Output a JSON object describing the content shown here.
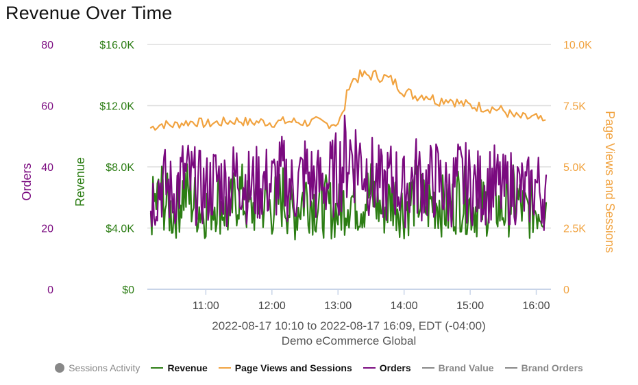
{
  "title": "Revenue Over Time",
  "colors": {
    "orders": "#7a0a7f",
    "revenue": "#2c7d14",
    "sessions": "#f1a340",
    "gray": "#888888",
    "grid": "#dddddd"
  },
  "caption": {
    "line1": "2022-08-17 10:10 to 2022-08-17 16:09, EDT (-04:00)",
    "line2": "Demo eCommerce Global"
  },
  "legend": [
    {
      "label": "Sessions Activity",
      "marker": "dot",
      "color": "#888888",
      "active": false
    },
    {
      "label": "Revenue",
      "marker": "line",
      "color": "#2c7d14",
      "active": true
    },
    {
      "label": "Page Views and Sessions",
      "marker": "line",
      "color": "#f1a340",
      "active": true
    },
    {
      "label": "Orders",
      "marker": "line",
      "color": "#7a0a7f",
      "active": true
    },
    {
      "label": "Brand Value",
      "marker": "line",
      "color": "#888888",
      "active": false
    },
    {
      "label": "Brand Orders",
      "marker": "line",
      "color": "#888888",
      "active": false
    }
  ],
  "chart_data": {
    "type": "line",
    "title": "Revenue Over Time",
    "x_range": [
      "2022-08-17 10:10",
      "2022-08-17 16:09"
    ],
    "x_ticks": [
      "11:00",
      "12:00",
      "13:00",
      "14:00",
      "15:00",
      "16:00"
    ],
    "grid": true,
    "legend_position": "bottom",
    "axes": {
      "orders": {
        "label": "Orders",
        "side": "left-outer",
        "ylim": [
          0,
          80
        ],
        "ticks": [
          "0",
          "20",
          "40",
          "60",
          "80"
        ]
      },
      "revenue": {
        "label": "Revenue",
        "side": "left-inner",
        "ylim": [
          0,
          16000
        ],
        "ticks": [
          "$0",
          "$4.0K",
          "$8.0K",
          "$12.0K",
          "$16.0K"
        ]
      },
      "sessions": {
        "label": "Page Views and Sessions",
        "side": "right",
        "ylim": [
          0,
          10000
        ],
        "ticks": [
          "0",
          "2.5K",
          "5.0K",
          "7.5K",
          "10.0K"
        ]
      }
    },
    "series": [
      {
        "name": "Page Views and Sessions",
        "axis": "sessions",
        "x": [
          "10:10",
          "10:20",
          "10:30",
          "10:40",
          "10:50",
          "11:00",
          "11:10",
          "11:20",
          "11:30",
          "11:40",
          "11:50",
          "12:00",
          "12:10",
          "12:20",
          "12:30",
          "12:40",
          "12:50",
          "13:00",
          "13:05",
          "13:10",
          "13:15",
          "13:20",
          "13:30",
          "13:40",
          "13:50",
          "14:00",
          "14:10",
          "14:20",
          "14:30",
          "14:40",
          "14:50",
          "15:00",
          "15:10",
          "15:20",
          "15:30",
          "15:40",
          "15:50",
          "16:00",
          "16:09"
        ],
        "values": [
          6600,
          6750,
          6700,
          6800,
          6850,
          6750,
          6800,
          6850,
          6900,
          6800,
          6850,
          6800,
          6850,
          6850,
          6800,
          6850,
          6750,
          6800,
          7200,
          8400,
          8600,
          8700,
          8750,
          8700,
          8500,
          8100,
          7900,
          7950,
          7700,
          7800,
          7600,
          7500,
          7450,
          7400,
          7300,
          7050,
          7000,
          7000,
          6750
        ]
      },
      {
        "name": "Revenue",
        "axis": "revenue",
        "x": [
          "10:10",
          "10:20",
          "10:30",
          "10:40",
          "10:50",
          "11:00",
          "11:10",
          "11:20",
          "11:30",
          "11:40",
          "11:50",
          "12:00",
          "12:10",
          "12:20",
          "12:30",
          "12:40",
          "12:50",
          "13:00",
          "13:10",
          "13:20",
          "13:30",
          "13:40",
          "13:50",
          "14:00",
          "14:10",
          "14:20",
          "14:30",
          "14:40",
          "14:50",
          "15:00",
          "15:10",
          "15:20",
          "15:30",
          "15:40",
          "15:50",
          "16:00",
          "16:09"
        ],
        "values": [
          5200,
          6200,
          4800,
          6500,
          5600,
          5200,
          6000,
          4900,
          6400,
          5100,
          5800,
          5300,
          6100,
          4800,
          6300,
          5500,
          5400,
          5000,
          6100,
          5600,
          6300,
          5100,
          6000,
          5200,
          6200,
          5400,
          5900,
          5000,
          6100,
          5500,
          5300,
          5800,
          5100,
          6000,
          5000,
          5400,
          5700
        ]
      },
      {
        "name": "Orders",
        "axis": "orders",
        "x": [
          "10:10",
          "10:20",
          "10:30",
          "10:40",
          "10:50",
          "11:00",
          "11:10",
          "11:20",
          "11:30",
          "11:40",
          "11:50",
          "12:00",
          "12:10",
          "12:20",
          "12:30",
          "12:40",
          "12:50",
          "13:00",
          "13:10",
          "13:20",
          "13:30",
          "13:40",
          "13:50",
          "14:00",
          "14:10",
          "14:20",
          "14:30",
          "14:40",
          "14:50",
          "15:00",
          "15:10",
          "15:20",
          "15:30",
          "15:40",
          "15:50",
          "16:00",
          "16:09"
        ],
        "values": [
          29,
          35,
          31,
          37,
          34,
          32,
          36,
          33,
          38,
          33,
          35,
          34,
          37,
          32,
          38,
          34,
          35,
          38,
          45,
          42,
          37,
          33,
          36,
          32,
          37,
          34,
          36,
          31,
          36,
          34,
          33,
          35,
          32,
          34,
          31,
          34,
          30
        ]
      }
    ]
  }
}
